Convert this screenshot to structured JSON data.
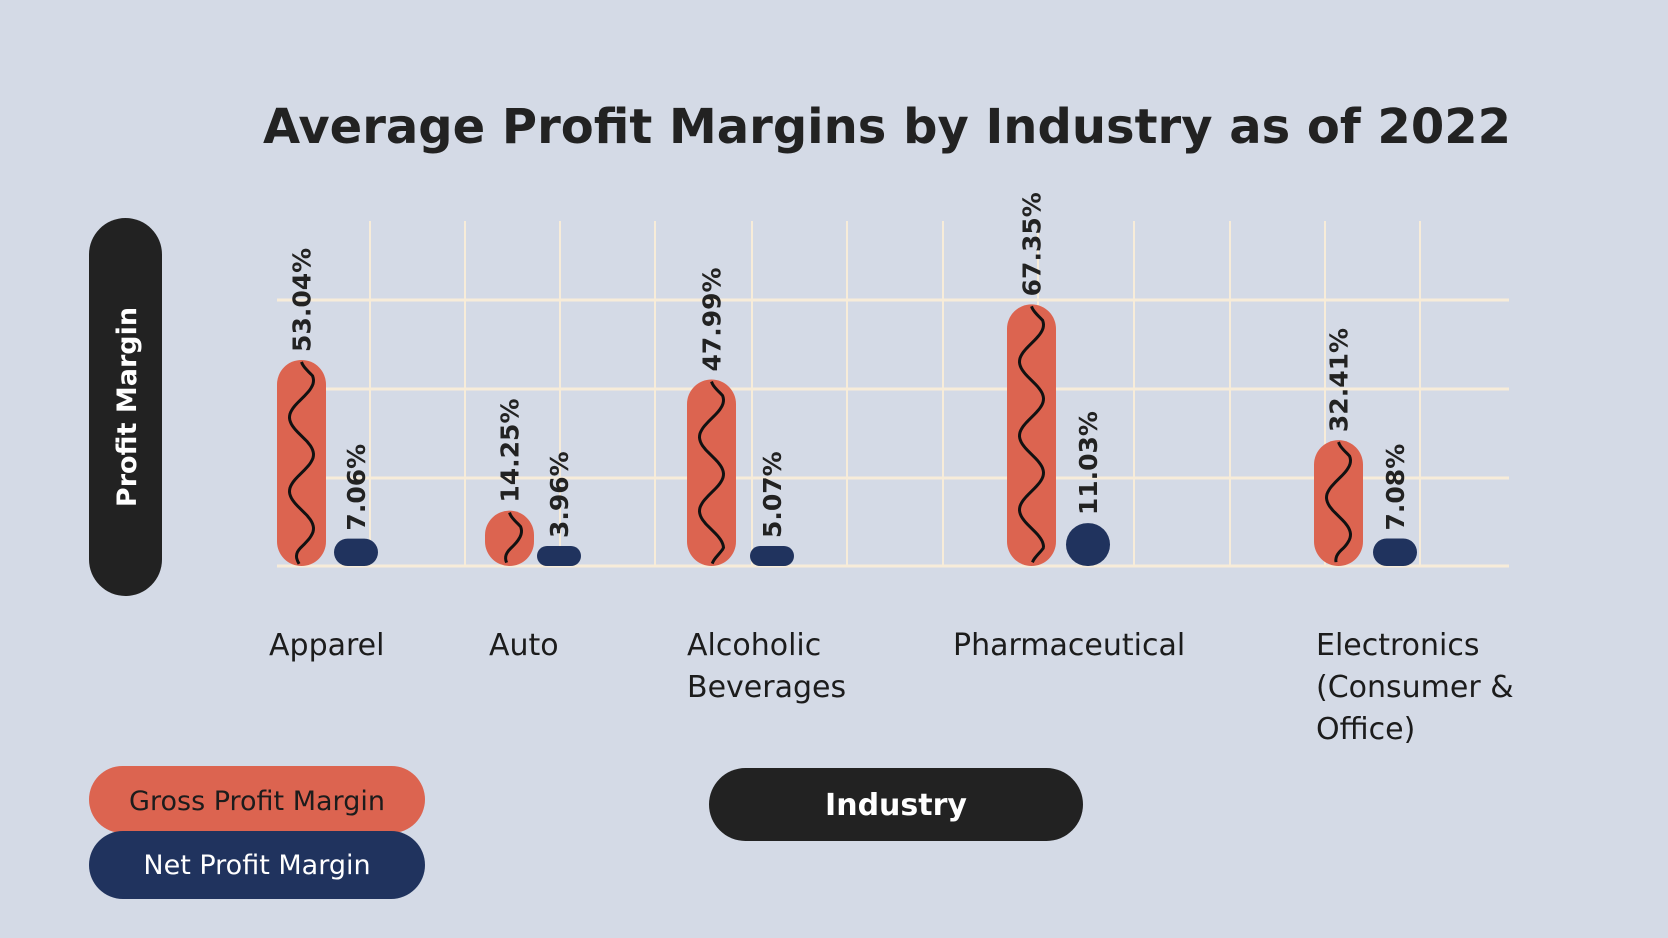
{
  "chart_data": {
    "type": "bar",
    "title": "Average Profit Margins by Industry as of 2022",
    "xlabel": "Industry",
    "ylabel": "Profit Margin",
    "categories": [
      [
        "Apparel"
      ],
      [
        "Auto"
      ],
      [
        "Alcoholic",
        "Beverages"
      ],
      [
        "Pharmaceutical"
      ],
      [
        "Electronics",
        "(Consumer &",
        "Office)"
      ]
    ],
    "series": [
      {
        "name": "Gross Profit Margin",
        "values": [
          53.04,
          14.25,
          47.99,
          67.35,
          32.41
        ],
        "labels": [
          "53.04%",
          "14.25%",
          "47.99%",
          "67.35%",
          "32.41%"
        ],
        "color": "#dc6450"
      },
      {
        "name": "Net Profit Margin",
        "values": [
          7.06,
          3.96,
          5.07,
          11.03,
          7.08
        ],
        "labels": [
          "7.06%",
          "3.96%",
          "5.07%",
          "11.03%",
          "7.08%"
        ],
        "color": "#20335e"
      }
    ],
    "ylim": [
      0,
      85
    ],
    "grid": true,
    "legend": "bottom-left",
    "colors": {
      "background": "#d4dae6",
      "grid": "#f7ecd9",
      "pill": "#222222"
    }
  }
}
